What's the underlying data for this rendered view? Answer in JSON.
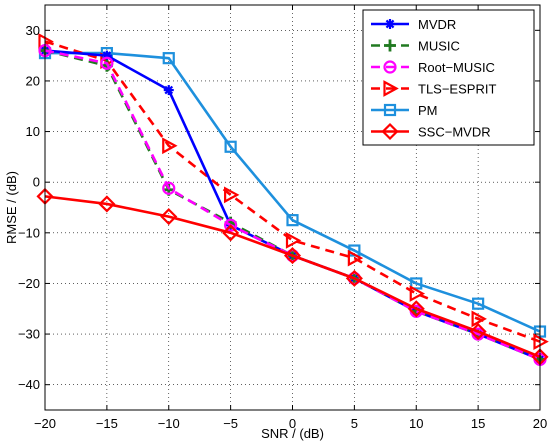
{
  "chart_data": {
    "type": "line",
    "xlabel": "SNR / (dB)",
    "ylabel": "RMSE / (dB)",
    "xlim": [
      -20,
      20
    ],
    "ylim": [
      -45,
      35
    ],
    "xticks": [
      -20,
      -15,
      -10,
      -5,
      0,
      5,
      10,
      15,
      20
    ],
    "xtick_labels": [
      "−20",
      "−15",
      "−10",
      "−5",
      "0",
      "5",
      "10",
      "15",
      "20"
    ],
    "yticks": [
      -40,
      -30,
      -20,
      -10,
      0,
      10,
      20,
      30
    ],
    "ytick_labels": [
      "−40",
      "−30",
      "−20",
      "−10",
      "0",
      "10",
      "20",
      "30"
    ],
    "grid": true,
    "legend_position": "top-right",
    "x": [
      -20,
      -15,
      -10,
      -5,
      0,
      5,
      10,
      15,
      20
    ],
    "series": [
      {
        "name": "MVDR",
        "color": "#0000ff",
        "dash": "solid",
        "marker": "asterisk",
        "values": [
          26,
          25,
          18.2,
          -8.5,
          -14.5,
          -19,
          -25.5,
          -30,
          -35
        ]
      },
      {
        "name": "MUSIC",
        "color": "#217a21",
        "dash": "dashed",
        "marker": "plus",
        "values": [
          26,
          23,
          -1.5,
          -8,
          -14.5,
          -19,
          -25.5,
          -30,
          -35
        ]
      },
      {
        "name": "Root−MUSIC",
        "color": "#ff00ff",
        "dash": "dashed",
        "marker": "circle",
        "values": [
          26,
          23.5,
          -1.2,
          -8.5,
          -14.5,
          -19,
          -25.5,
          -30,
          -35
        ]
      },
      {
        "name": "TLS−ESPRIT",
        "color": "#ff0000",
        "dash": "dashed",
        "marker": "triangle-right",
        "values": [
          27.8,
          24,
          7.2,
          -2.5,
          -11.5,
          -15,
          -22,
          -27,
          -31.5
        ]
      },
      {
        "name": "PM",
        "color": "#1e90dd",
        "dash": "solid",
        "marker": "square",
        "values": [
          25.5,
          25.5,
          24.5,
          7,
          -7.5,
          -13.5,
          -20,
          -24,
          -29.5
        ]
      },
      {
        "name": "SSC−MVDR",
        "color": "#ff0000",
        "dash": "solid",
        "marker": "diamond",
        "values": [
          -2.8,
          -4.3,
          -6.8,
          -10,
          -14.5,
          -19,
          -25,
          -29.5,
          -34.5
        ]
      }
    ]
  }
}
